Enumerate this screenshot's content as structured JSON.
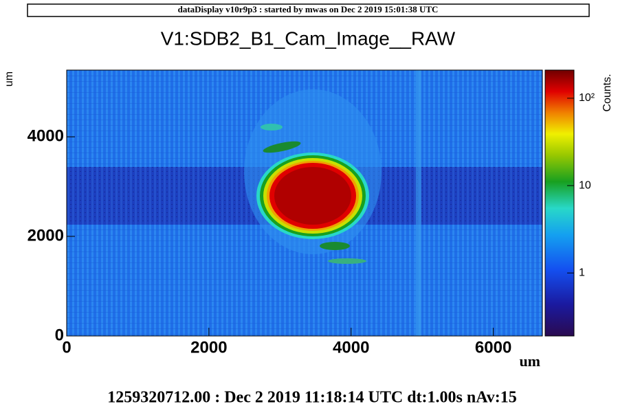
{
  "header": {
    "text": "dataDisplay v10r9p3 : started by mwas on Dec  2 2019 15:01:38 UTC"
  },
  "chart_data": {
    "type": "heatmap",
    "title": "V1:SDB2_B1_Cam_Image__RAW",
    "xlabel": "um",
    "ylabel": "um",
    "zlabel": "Counts.",
    "xlim": [
      0,
      6690
    ],
    "xticks": [
      0,
      2000,
      4000,
      6000
    ],
    "ylim": [
      0,
      5340
    ],
    "yticks": [
      0,
      2000,
      4000
    ],
    "zlim": [
      0.19,
      210
    ],
    "zlog": true,
    "zticks": [
      1,
      10,
      {
        "value": 100,
        "label": "10²"
      }
    ]
  },
  "footer": {
    "text": "1259320712.00 : Dec  2 2019 11:18:14 UTC dt:1.00s nAv:15"
  }
}
